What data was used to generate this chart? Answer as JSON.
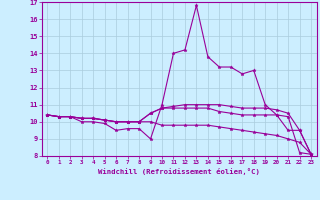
{
  "xlabel": "Windchill (Refroidissement éolien,°C)",
  "bg_color": "#cceeff",
  "line_color": "#990099",
  "grid_color": "#aaccdd",
  "xlim": [
    -0.5,
    23.5
  ],
  "ylim": [
    8,
    17
  ],
  "xticks": [
    0,
    1,
    2,
    3,
    4,
    5,
    6,
    7,
    8,
    9,
    10,
    11,
    12,
    13,
    14,
    15,
    16,
    17,
    18,
    19,
    20,
    21,
    22,
    23
  ],
  "yticks": [
    8,
    9,
    10,
    11,
    12,
    13,
    14,
    15,
    16,
    17
  ],
  "series": [
    [
      10.4,
      10.3,
      10.3,
      10.0,
      10.0,
      9.9,
      9.5,
      9.6,
      9.6,
      9.0,
      11.0,
      14.0,
      14.2,
      16.8,
      13.8,
      13.2,
      13.2,
      12.8,
      13.0,
      11.0,
      10.4,
      9.5,
      9.5,
      8.1
    ],
    [
      10.4,
      10.3,
      10.3,
      10.2,
      10.2,
      10.1,
      10.0,
      10.0,
      10.0,
      10.5,
      10.8,
      10.9,
      11.0,
      11.0,
      11.0,
      11.0,
      10.9,
      10.8,
      10.8,
      10.8,
      10.7,
      10.5,
      9.5,
      8.1
    ],
    [
      10.4,
      10.3,
      10.3,
      10.2,
      10.2,
      10.1,
      10.0,
      10.0,
      10.0,
      10.5,
      10.8,
      10.8,
      10.8,
      10.8,
      10.8,
      10.6,
      10.5,
      10.4,
      10.4,
      10.4,
      10.4,
      10.3,
      8.2,
      8.1
    ],
    [
      10.4,
      10.3,
      10.3,
      10.2,
      10.2,
      10.1,
      10.0,
      10.0,
      10.0,
      10.0,
      9.8,
      9.8,
      9.8,
      9.8,
      9.8,
      9.7,
      9.6,
      9.5,
      9.4,
      9.3,
      9.2,
      9.0,
      8.8,
      8.1
    ]
  ]
}
